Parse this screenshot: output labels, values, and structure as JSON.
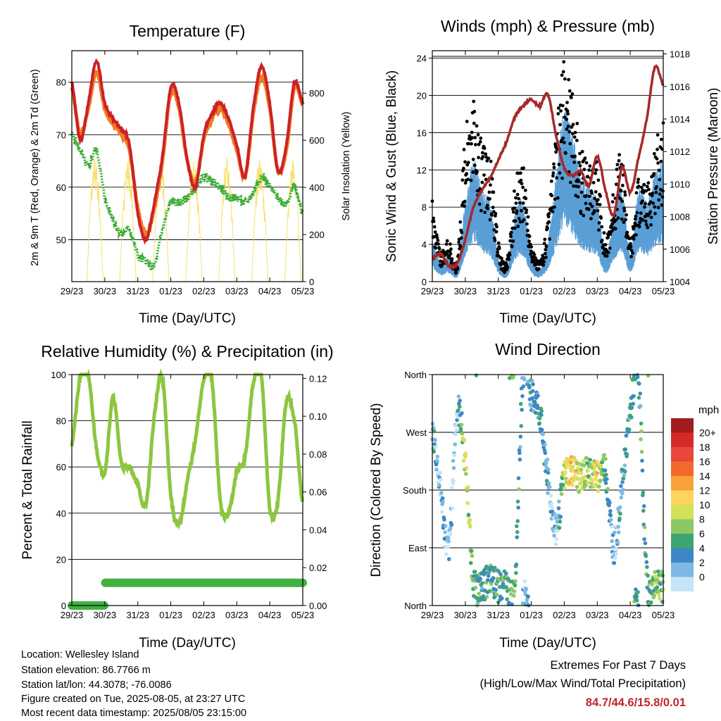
{
  "days": [
    "29/23",
    "30/23",
    "31/23",
    "01/23",
    "02/23",
    "03/23",
    "04/23",
    "05/23"
  ],
  "colors": {
    "temp_red": "#cc2127",
    "temp_orange": "#f07b22",
    "dewpoint_green": "#3aab35",
    "solar_yellow": "#f8e06a",
    "wind_blue": "#5a9fd6",
    "gust_black": "#000000",
    "pressure_maroon": "#a52a2a",
    "rh_green": "#8dc63f",
    "rain_green": "#40b040",
    "extremes_red": "#c0272d"
  },
  "temperature": {
    "title": "Temperature (F)",
    "xlabel": "Time (Day/UTC)",
    "ylabel_left": "2m & 9m T (Red, Orange) & 2m Td (Green)",
    "ylabel_right": "Solar Insolation (Yellow)",
    "left_ticks": [
      "50",
      "60",
      "70",
      "80"
    ],
    "right_ticks": [
      "0",
      "200",
      "400",
      "600",
      "800"
    ]
  },
  "winds": {
    "title": "Winds (mph) & Pressure (mb)",
    "xlabel": "Time (Day/UTC)",
    "ylabel_left": "Sonic Wind & Gust (Blue, Black)",
    "ylabel_right": "Station Pressure (Maroon)",
    "left_ticks": [
      "0",
      "4",
      "8",
      "12",
      "16",
      "20",
      "24"
    ],
    "right_ticks": [
      "1004",
      "1006",
      "1008",
      "1010",
      "1012",
      "1014",
      "1016",
      "1018"
    ]
  },
  "humidity": {
    "title": "Relative Humidity (%) & Precipitation (in)",
    "xlabel": "Time (Day/UTC)",
    "ylabel_left": "Percent & Total Rainfall",
    "left_ticks": [
      "0",
      "20",
      "40",
      "60",
      "80",
      "100"
    ],
    "right_ticks": [
      "0.00",
      "0.02",
      "0.04",
      "0.06",
      "0.08",
      "0.10",
      "0.12"
    ]
  },
  "direction": {
    "title": "Wind Direction",
    "xlabel": "Time (Day/UTC)",
    "ylabel_left": "Direction (Colored By Speed)",
    "dir_ticks": [
      "North",
      "East",
      "South",
      "West",
      "North"
    ],
    "legend_unit": "mph",
    "legend_labels": [
      "20+",
      "18",
      "16",
      "14",
      "12",
      "10",
      "8",
      "6",
      "4",
      "2",
      "0"
    ],
    "legend_colors": [
      "#a01c1f",
      "#d42a2a",
      "#e8473a",
      "#f16a2b",
      "#f8a13c",
      "#fdd45e",
      "#d2e05a",
      "#8dc865",
      "#3fa570",
      "#3d88c4",
      "#7db9e3",
      "#c5e5f6"
    ]
  },
  "footer": {
    "location": "Location: Wellesley Island",
    "elevation": "Station elevation: 86.7766 m",
    "latlon": "Station lat/lon: 44.3078; -76.0086",
    "created": "Figure created on Tue, 2025-08-05, at 23:27 UTC",
    "recent": "Most recent data timestamp: 2025/08/05 23:15:00"
  },
  "extremes": {
    "title": "Extremes For Past 7 Days",
    "subtitle": "(High/Low/Max Wind/Total Precipitation)",
    "values": "84.7/44.6/15.8/0.01"
  },
  "chart_data": [
    {
      "type": "line",
      "title": "Temperature (F)",
      "xlabel": "Time (Day/UTC)",
      "ylabel": "2m & 9m T (Red, Orange) & 2m Td (Green)",
      "y2label": "Solar Insolation (Yellow)",
      "x": [
        0,
        0.25,
        0.5,
        0.75,
        1,
        1.25,
        1.5,
        1.75,
        2,
        2.25,
        2.5,
        2.75,
        3,
        3.25,
        3.5,
        3.75,
        4,
        4.25,
        4.5,
        4.75,
        5,
        5.25,
        5.5,
        5.75,
        6,
        6.25,
        6.5,
        6.75,
        7
      ],
      "ylim": [
        42,
        86
      ],
      "y2lim": [
        0,
        980
      ],
      "series": [
        {
          "name": "2m T",
          "values": [
            80,
            69,
            76,
            84,
            76,
            73,
            71,
            68,
            55,
            50,
            57,
            66,
            79,
            76,
            65,
            60,
            70,
            74,
            76,
            73,
            68,
            62,
            75,
            83,
            76,
            63,
            68,
            80,
            76
          ]
        },
        {
          "name": "9m T",
          "values": [
            79,
            70,
            75,
            82,
            75,
            72,
            70,
            67,
            56,
            51,
            56,
            65,
            78,
            75,
            65,
            61,
            69,
            73,
            75,
            72,
            67,
            62,
            74,
            81,
            75,
            63,
            67,
            79,
            76
          ]
        },
        {
          "name": "2m Td",
          "values": [
            70,
            67,
            64,
            67,
            58,
            54,
            51,
            52,
            47,
            46,
            45,
            52,
            57,
            57,
            58,
            60,
            62,
            61,
            60,
            58,
            58,
            57,
            59,
            62,
            60,
            58,
            57,
            60,
            55
          ]
        },
        {
          "name": "Solar Insolation",
          "axis": "right",
          "values": [
            20,
            500,
            60,
            900,
            750,
            30,
            10,
            900,
            740,
            60,
            20,
            950,
            770,
            40,
            10,
            800,
            600,
            30,
            10,
            850,
            700,
            40,
            10,
            900,
            700,
            30,
            10,
            800,
            200
          ]
        }
      ]
    },
    {
      "type": "line",
      "title": "Winds (mph) & Pressure (mb)",
      "xlabel": "Time (Day/UTC)",
      "ylabel": "Sonic Wind & Gust (Blue, Black)",
      "y2label": "Station Pressure (Maroon)",
      "x": [
        0,
        0.25,
        0.5,
        0.75,
        1,
        1.25,
        1.5,
        1.75,
        2,
        2.25,
        2.5,
        2.75,
        3,
        3.25,
        3.5,
        3.75,
        4,
        4.25,
        4.5,
        4.75,
        5,
        5.25,
        5.5,
        5.75,
        6,
        6.25,
        6.5,
        6.75,
        7
      ],
      "ylim": [
        0,
        24.8
      ],
      "y2lim": [
        1004,
        1018.2
      ],
      "series": [
        {
          "name": "Sonic Wind",
          "values": [
            3,
            1.5,
            2,
            1,
            6,
            9,
            7,
            6,
            2,
            1,
            5,
            6,
            2,
            1,
            3,
            8,
            13,
            11,
            8,
            7,
            6,
            2,
            5,
            7,
            2,
            7,
            6,
            8,
            9
          ]
        },
        {
          "name": "Gust",
          "values": [
            8,
            3,
            4,
            2,
            14,
            17,
            13,
            12,
            4,
            2,
            9,
            11,
            4,
            2,
            6,
            14,
            21,
            18,
            13,
            12,
            11,
            4,
            9,
            12,
            4,
            10,
            9,
            13,
            15
          ]
        },
        {
          "name": "Station Pressure",
          "axis": "right",
          "values": [
            1005.4,
            1005.7,
            1005.0,
            1005.1,
            1006.6,
            1008.6,
            1009.6,
            1010.4,
            1011.5,
            1012.6,
            1014.1,
            1014.8,
            1015.2,
            1014.8,
            1015.5,
            1013.0,
            1011.0,
            1010.5,
            1010.8,
            1009.9,
            1011.7,
            1009.6,
            1008.1,
            1011.0,
            1009.5,
            1011.6,
            1014.0,
            1017.2,
            1016.1
          ]
        }
      ]
    },
    {
      "type": "line",
      "title": "Relative Humidity (%) & Precipitation (in)",
      "xlabel": "Time (Day/UTC)",
      "ylabel": "Percent & Total Rainfall",
      "x": [
        0,
        0.25,
        0.5,
        0.75,
        1,
        1.25,
        1.5,
        1.75,
        2,
        2.25,
        2.5,
        2.75,
        3,
        3.25,
        3.5,
        3.75,
        4,
        4.25,
        4.5,
        4.75,
        5,
        5.25,
        5.5,
        5.75,
        6,
        6.25,
        6.5,
        6.75,
        7
      ],
      "ylim": [
        0,
        100
      ],
      "y2lim": [
        0,
        0.122
      ],
      "series": [
        {
          "name": "Relative Humidity",
          "values": [
            70,
            98,
            99,
            68,
            58,
            90,
            62,
            60,
            52,
            44,
            82,
            98,
            48,
            35,
            54,
            72,
            98,
            97,
            45,
            40,
            58,
            64,
            96,
            99,
            42,
            46,
            88,
            80,
            44
          ]
        },
        {
          "name": "Total Rainfall",
          "axis": "right",
          "values": [
            0,
            0,
            0,
            0.0,
            0.012,
            0.012,
            0.012,
            0.012,
            0.012,
            0.012,
            0.012,
            0.012,
            0.012,
            0.012,
            0.012,
            0.012,
            0.012,
            0.012,
            0.012,
            0.012,
            0.012,
            0.012,
            0.012,
            0.012,
            0.012,
            0.012,
            0.012,
            0.012,
            0.012
          ]
        }
      ]
    },
    {
      "type": "scatter",
      "title": "Wind Direction",
      "xlabel": "Time (Day/UTC)",
      "ylabel": "Direction (Colored By Speed)",
      "x": [
        0,
        0.25,
        0.5,
        0.75,
        1,
        1.25,
        1.5,
        1.75,
        2,
        2.25,
        2.5,
        2.75,
        3,
        3.25,
        3.5,
        3.75,
        4,
        4.25,
        4.5,
        4.75,
        5,
        5.25,
        5.5,
        5.75,
        6,
        6.25,
        6.5,
        6.75,
        7
      ],
      "ylim": [
        0,
        360
      ],
      "series": [
        {
          "name": "Direction",
          "values": [
            270,
            180,
            90,
            300,
            220,
            40,
            30,
            40,
            30,
            30,
            40,
            360,
            330,
            300,
            200,
            120,
            200,
            210,
            200,
            210,
            200,
            210,
            90,
            190,
            300,
            350,
            40,
            40,
            30
          ]
        },
        {
          "name": "Speed",
          "values": [
            4,
            2,
            2,
            2,
            10,
            6,
            5,
            6,
            6,
            5,
            7,
            3,
            4,
            5,
            3,
            2,
            9,
            12,
            9,
            8,
            11,
            6,
            2,
            4,
            5,
            5,
            6,
            7,
            7
          ]
        }
      ]
    }
  ]
}
